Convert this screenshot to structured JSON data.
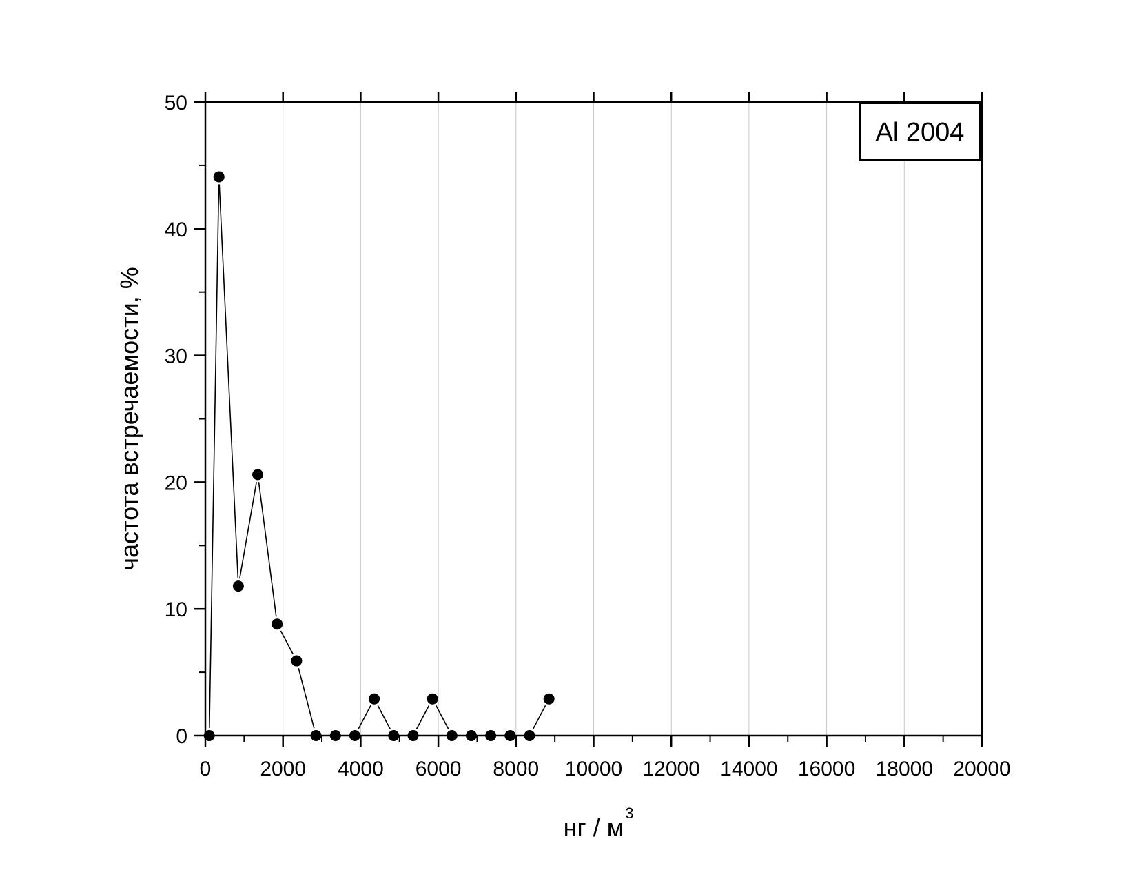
{
  "chart_data": {
    "type": "line",
    "title": "",
    "xlabel": "нг / м",
    "xlabel_sup": "3",
    "ylabel": "частота встречаемости, %",
    "xlim": [
      0,
      20000
    ],
    "ylim": [
      0,
      50
    ],
    "x_ticks": [
      0,
      2000,
      4000,
      6000,
      8000,
      10000,
      12000,
      14000,
      16000,
      18000,
      20000
    ],
    "y_ticks": [
      0,
      10,
      20,
      30,
      40,
      50
    ],
    "grid": "vertical",
    "legend_label": "Al 2004",
    "legend_position": "top-right",
    "series": [
      {
        "marker": "filled-circle",
        "color": "#000000",
        "x": [
          100,
          350,
          850,
          1350,
          1850,
          2350,
          2850,
          3350,
          3850,
          4350,
          4850,
          5350,
          5850,
          6350,
          6850,
          7350,
          7850,
          8350,
          8850
        ],
        "y": [
          0,
          44.1,
          11.8,
          20.6,
          8.8,
          5.9,
          0,
          0,
          0,
          2.9,
          0,
          0,
          2.9,
          0,
          0,
          0,
          0,
          0,
          2.9
        ]
      }
    ]
  }
}
